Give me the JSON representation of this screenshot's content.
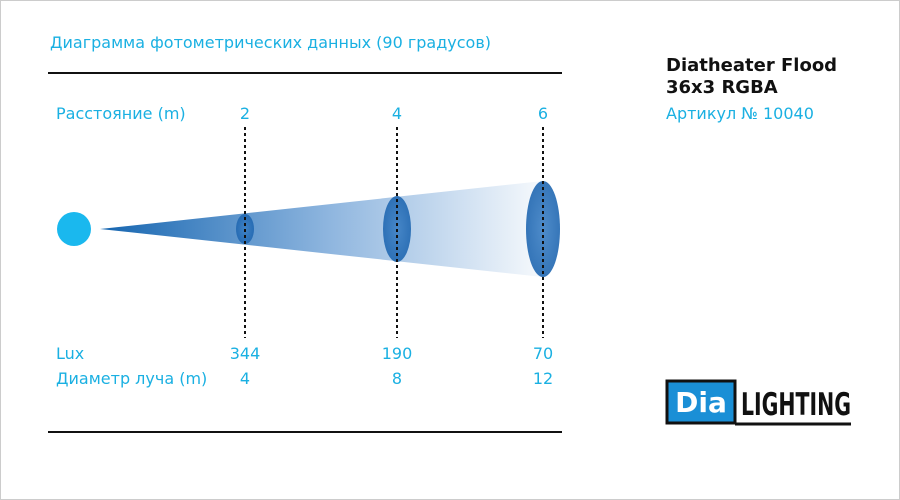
{
  "header": {
    "title": "Диаграмма фотометрических данных (90 градусов)"
  },
  "product": {
    "name_line1": "Diatheater Flood",
    "name_line2": "36x3 RGBA",
    "article": "Артикул № 10040"
  },
  "table": {
    "distance_label": "Расстояние (m)",
    "distances": [
      2,
      4,
      6
    ],
    "lux_label": "Lux",
    "lux": [
      344,
      190,
      70
    ],
    "diameter_label": "Диаметр луча (m)",
    "diameters": [
      4,
      8,
      12
    ]
  },
  "logo": {
    "left": "Dia",
    "right": "LIGHTING"
  }
}
